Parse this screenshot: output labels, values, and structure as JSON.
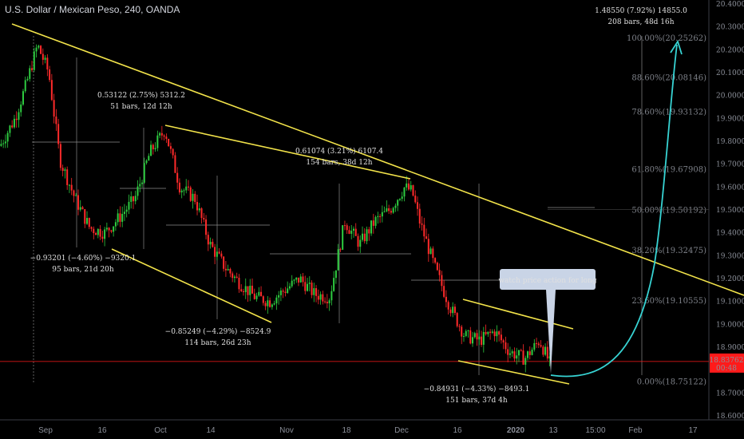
{
  "header": {
    "title": "U.S. Dollar / Mexican Peso, 240, OANDA"
  },
  "colors": {
    "up": "#2ecc40",
    "down": "#ff2a2a",
    "trend": "#f2e34a",
    "arc": "#37d3d3",
    "price": "#ff1a1a"
  },
  "price_badge": {
    "price": "18.83762",
    "countdown": "00:48"
  },
  "callout": {
    "text": "watch price action for long"
  },
  "measures": [
    {
      "line1": "0.53122 (2.75%) 5312.2",
      "line2": "51 bars, 12d 12h"
    },
    {
      "line1": "−0.93201 (−4.60%) −9320.1",
      "line2": "95 bars, 21d 20h"
    },
    {
      "line1": "−0.85249 (−4.29%) −8524.9",
      "line2": "114 bars, 26d 23h"
    },
    {
      "line1": "0.61074 (3.21%) 6107.4",
      "line2": "154 bars, 38d 12h"
    },
    {
      "line1": "−0.84931 (−4.33%) −8493.1",
      "line2": "151 bars, 37d 4h"
    },
    {
      "line1": "1.48550 (7.92%) 14855.0",
      "line2": "208 bars, 48d 16h"
    }
  ],
  "chart_data": {
    "type": "candlestick",
    "title": "U.S. Dollar / Mexican Peso, 240, OANDA",
    "x_ticks": [
      "Sep",
      "16",
      "Oct",
      "14",
      "Nov",
      "18",
      "Dec",
      "16",
      "2020",
      "13",
      "15:00",
      "Feb",
      "17"
    ],
    "y_ticks": [
      "20.40000",
      "20.30000",
      "20.20000",
      "20.10000",
      "20.00000",
      "19.90000",
      "19.80000",
      "19.70000",
      "19.60000",
      "19.50000",
      "19.40000",
      "19.30000",
      "19.20000",
      "19.10000",
      "19.00000",
      "18.90000",
      "18.80000",
      "18.70000",
      "18.60000"
    ],
    "ylim": [
      18.6,
      20.4
    ],
    "last_price": 18.83762,
    "fib_levels": [
      {
        "label": "100.00%(20.25262)",
        "value": 20.25262
      },
      {
        "label": "88.60%(20.08146)",
        "value": 20.08146
      },
      {
        "label": "78.60%(19.93132)",
        "value": 19.93132
      },
      {
        "label": "61.80%(19.67908)",
        "value": 19.67908
      },
      {
        "label": "50.00%(19.50192)",
        "value": 19.50192
      },
      {
        "label": "38.20%(19.32475)",
        "value": 19.32475
      },
      {
        "label": "23.60%(19.10555)",
        "value": 19.10555
      },
      {
        "label": "0.00%(18.75122)",
        "value": 18.75122
      }
    ],
    "price_path": [
      [
        0,
        19.78
      ],
      [
        0.02,
        19.9
      ],
      [
        0.035,
        20.05
      ],
      [
        0.05,
        20.22
      ],
      [
        0.065,
        20.1
      ],
      [
        0.08,
        19.72
      ],
      [
        0.1,
        19.55
      ],
      [
        0.12,
        19.42
      ],
      [
        0.14,
        19.4
      ],
      [
        0.16,
        19.47
      ],
      [
        0.18,
        19.55
      ],
      [
        0.2,
        19.75
      ],
      [
        0.22,
        19.85
      ],
      [
        0.24,
        19.6
      ],
      [
        0.26,
        19.55
      ],
      [
        0.28,
        19.35
      ],
      [
        0.3,
        19.25
      ],
      [
        0.32,
        19.18
      ],
      [
        0.34,
        19.12
      ],
      [
        0.36,
        19.1
      ],
      [
        0.38,
        19.15
      ],
      [
        0.4,
        19.2
      ],
      [
        0.42,
        19.13
      ],
      [
        0.44,
        19.12
      ],
      [
        0.46,
        19.45
      ],
      [
        0.48,
        19.35
      ],
      [
        0.5,
        19.45
      ],
      [
        0.52,
        19.5
      ],
      [
        0.54,
        19.6
      ],
      [
        0.55,
        19.58
      ],
      [
        0.56,
        19.45
      ],
      [
        0.58,
        19.25
      ],
      [
        0.6,
        19.08
      ],
      [
        0.62,
        18.95
      ],
      [
        0.64,
        18.93
      ],
      [
        0.66,
        18.97
      ],
      [
        0.68,
        18.88
      ],
      [
        0.7,
        18.85
      ],
      [
        0.72,
        18.93
      ],
      [
        0.735,
        18.82
      ]
    ]
  }
}
